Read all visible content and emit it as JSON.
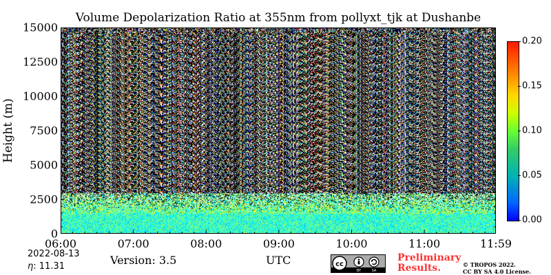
{
  "chart_data": {
    "type": "heatmap",
    "title": "Volume Depolarization Ratio at 355nm from pollyxt_tjk at Dushanbe",
    "xlabel": "UTC",
    "ylabel": "Height (m)",
    "x_ticks": [
      "06:00",
      "07:00",
      "08:00",
      "09:00",
      "10:00",
      "11:00",
      "11:59"
    ],
    "x_range": [
      "06:00",
      "11:59"
    ],
    "y_ticks": [
      0,
      2500,
      5000,
      7500,
      10000,
      12500,
      15000
    ],
    "ylim": [
      0,
      15000
    ],
    "colorbar": {
      "ticks": [
        "0.00",
        "0.05",
        "0.10",
        "0.15",
        "0.20"
      ],
      "range": [
        0,
        0.2
      ],
      "colormap": "jet"
    },
    "layers": [
      {
        "height_range": [
          0,
          1500
        ],
        "dominant_value_range": [
          0.03,
          0.07
        ]
      },
      {
        "height_range": [
          1500,
          3000
        ],
        "dominant_value_range": [
          0.04,
          0.1
        ]
      },
      {
        "height_range": [
          3000,
          15000
        ],
        "dominant_value_range": [
          0.0,
          0.2
        ],
        "note_noise": true
      }
    ],
    "grid": false,
    "legend": "none"
  },
  "footer": {
    "date": "2022-08-13",
    "eta_symbol": "η",
    "eta_value": ":  11.31",
    "version": "Version: 3.5",
    "preliminary_line1": "Preliminary",
    "preliminary_line2": "Results.",
    "copyright_line1": "© TROPOS 2022.",
    "copyright_line2": "CC BY SA 4.0 License."
  }
}
